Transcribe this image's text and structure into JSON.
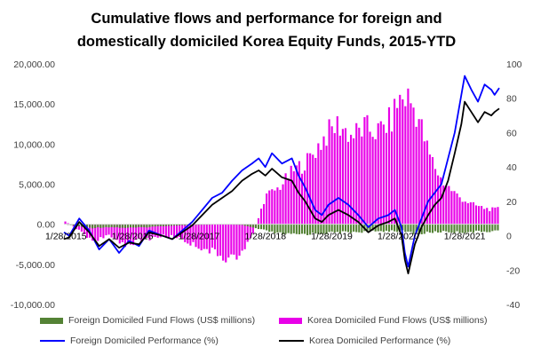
{
  "chart_data": {
    "type": "bar+line",
    "title_lines": [
      "Cumulative flows and performance for foreign and",
      "domestically domiciled Korea Equity Funds, 2015-YTD"
    ],
    "x_tick_labels": [
      "1/28/2015",
      "1/28/2016",
      "1/28/2017",
      "1/28/2018",
      "1/28/2019",
      "1/28/2020",
      "1/28/2021"
    ],
    "y_left": {
      "min": -10000,
      "max": 20000,
      "step": 5000,
      "tick_labels": [
        "-10,000.00",
        "-5,000.00",
        "0.00",
        "5,000.00",
        "10,000.00",
        "15,000.00",
        "20,000.00"
      ]
    },
    "y_right": {
      "min": -40,
      "max": 100,
      "step": 20,
      "tick_labels": [
        "-40",
        "-20",
        "0",
        "20",
        "40",
        "60",
        "80",
        "100"
      ]
    },
    "x_range": [
      2015.07,
      2021.62
    ],
    "series": [
      {
        "name": "Foreign Domiciled Fund  Flows (US$ millions)",
        "kind": "bar",
        "axis": "left",
        "color": "#548235",
        "points": [
          [
            2015.07,
            0
          ],
          [
            2015.25,
            -200
          ],
          [
            2015.5,
            -450
          ],
          [
            2015.75,
            -350
          ],
          [
            2016.0,
            -450
          ],
          [
            2016.25,
            -400
          ],
          [
            2016.5,
            -250
          ],
          [
            2016.75,
            -150
          ],
          [
            2017.0,
            -100
          ],
          [
            2017.25,
            -50
          ],
          [
            2017.5,
            0
          ],
          [
            2017.75,
            -100
          ],
          [
            2018.0,
            -600
          ],
          [
            2018.25,
            -1100
          ],
          [
            2018.5,
            -1300
          ],
          [
            2018.75,
            -1200
          ],
          [
            2019.0,
            -1100
          ],
          [
            2019.25,
            -1000
          ],
          [
            2019.5,
            -950
          ],
          [
            2019.75,
            -900
          ],
          [
            2020.0,
            -800
          ],
          [
            2020.2,
            -900
          ],
          [
            2020.4,
            -1200
          ],
          [
            2020.6,
            -1000
          ],
          [
            2020.8,
            -900
          ],
          [
            2021.0,
            -1000
          ],
          [
            2021.2,
            -950
          ],
          [
            2021.4,
            -900
          ],
          [
            2021.62,
            -800
          ]
        ]
      },
      {
        "name": "Korea Domiciled Fund  Flows (US$ millions)",
        "kind": "bar",
        "axis": "left",
        "color": "#e800e8",
        "points": [
          [
            2015.07,
            500
          ],
          [
            2015.3,
            -800
          ],
          [
            2015.5,
            -2000
          ],
          [
            2015.75,
            -1500
          ],
          [
            2016.0,
            -2500
          ],
          [
            2016.25,
            -2000
          ],
          [
            2016.5,
            -1500
          ],
          [
            2016.75,
            -1500
          ],
          [
            2017.0,
            -2500
          ],
          [
            2017.25,
            -3200
          ],
          [
            2017.5,
            -4200
          ],
          [
            2017.75,
            -3800
          ],
          [
            2017.95,
            -500
          ],
          [
            2018.1,
            3500
          ],
          [
            2018.3,
            4500
          ],
          [
            2018.5,
            6500
          ],
          [
            2018.75,
            8000
          ],
          [
            2019.0,
            11000
          ],
          [
            2019.2,
            12500
          ],
          [
            2019.4,
            11000
          ],
          [
            2019.6,
            12000
          ],
          [
            2019.8,
            11500
          ],
          [
            2020.0,
            13000
          ],
          [
            2020.1,
            15500
          ],
          [
            2020.25,
            15800
          ],
          [
            2020.4,
            13500
          ],
          [
            2020.55,
            9000
          ],
          [
            2020.75,
            5500
          ],
          [
            2021.0,
            3500
          ],
          [
            2021.2,
            2500
          ],
          [
            2021.4,
            2000
          ],
          [
            2021.55,
            1800
          ],
          [
            2021.62,
            2000
          ]
        ]
      },
      {
        "name": "Foreign Domiciled Performance (%)",
        "kind": "line",
        "axis": "right",
        "color": "#0000ff",
        "points": [
          [
            2015.07,
            2
          ],
          [
            2015.15,
            0
          ],
          [
            2015.3,
            10
          ],
          [
            2015.45,
            3
          ],
          [
            2015.6,
            -8
          ],
          [
            2015.75,
            -2
          ],
          [
            2015.9,
            -10
          ],
          [
            2016.05,
            -3
          ],
          [
            2016.2,
            -6
          ],
          [
            2016.35,
            3
          ],
          [
            2016.55,
            0
          ],
          [
            2016.7,
            -2
          ],
          [
            2016.85,
            3
          ],
          [
            2017.0,
            8
          ],
          [
            2017.15,
            15
          ],
          [
            2017.3,
            22
          ],
          [
            2017.45,
            25
          ],
          [
            2017.6,
            32
          ],
          [
            2017.75,
            38
          ],
          [
            2017.9,
            42
          ],
          [
            2018.0,
            45
          ],
          [
            2018.1,
            40
          ],
          [
            2018.2,
            48
          ],
          [
            2018.35,
            42
          ],
          [
            2018.5,
            45
          ],
          [
            2018.6,
            35
          ],
          [
            2018.7,
            28
          ],
          [
            2018.85,
            15
          ],
          [
            2018.95,
            12
          ],
          [
            2019.05,
            18
          ],
          [
            2019.2,
            22
          ],
          [
            2019.35,
            18
          ],
          [
            2019.5,
            12
          ],
          [
            2019.65,
            5
          ],
          [
            2019.8,
            10
          ],
          [
            2019.95,
            12
          ],
          [
            2020.05,
            15
          ],
          [
            2020.15,
            5
          ],
          [
            2020.2,
            -10
          ],
          [
            2020.25,
            -18
          ],
          [
            2020.35,
            0
          ],
          [
            2020.45,
            10
          ],
          [
            2020.55,
            20
          ],
          [
            2020.65,
            25
          ],
          [
            2020.75,
            30
          ],
          [
            2020.85,
            45
          ],
          [
            2020.95,
            60
          ],
          [
            2021.05,
            82
          ],
          [
            2021.1,
            93
          ],
          [
            2021.2,
            85
          ],
          [
            2021.3,
            78
          ],
          [
            2021.4,
            88
          ],
          [
            2021.5,
            85
          ],
          [
            2021.55,
            82
          ],
          [
            2021.62,
            86
          ]
        ]
      },
      {
        "name": "Korea  Domiciled Performance (%)",
        "kind": "line",
        "axis": "right",
        "color": "#000000",
        "points": [
          [
            2015.07,
            -2
          ],
          [
            2015.15,
            -1
          ],
          [
            2015.3,
            8
          ],
          [
            2015.45,
            2
          ],
          [
            2015.6,
            -6
          ],
          [
            2015.75,
            -2
          ],
          [
            2015.9,
            -7
          ],
          [
            2016.05,
            -4
          ],
          [
            2016.2,
            -5
          ],
          [
            2016.35,
            2
          ],
          [
            2016.55,
            0
          ],
          [
            2016.7,
            -2
          ],
          [
            2016.85,
            2
          ],
          [
            2017.0,
            6
          ],
          [
            2017.15,
            12
          ],
          [
            2017.3,
            18
          ],
          [
            2017.45,
            22
          ],
          [
            2017.6,
            26
          ],
          [
            2017.75,
            32
          ],
          [
            2017.9,
            36
          ],
          [
            2018.0,
            38
          ],
          [
            2018.1,
            35
          ],
          [
            2018.2,
            39
          ],
          [
            2018.35,
            34
          ],
          [
            2018.5,
            32
          ],
          [
            2018.6,
            25
          ],
          [
            2018.7,
            20
          ],
          [
            2018.85,
            10
          ],
          [
            2018.95,
            8
          ],
          [
            2019.05,
            12
          ],
          [
            2019.2,
            15
          ],
          [
            2019.35,
            12
          ],
          [
            2019.5,
            8
          ],
          [
            2019.65,
            2
          ],
          [
            2019.8,
            6
          ],
          [
            2019.95,
            8
          ],
          [
            2020.05,
            10
          ],
          [
            2020.15,
            0
          ],
          [
            2020.2,
            -14
          ],
          [
            2020.25,
            -22
          ],
          [
            2020.35,
            -5
          ],
          [
            2020.45,
            5
          ],
          [
            2020.55,
            12
          ],
          [
            2020.65,
            18
          ],
          [
            2020.75,
            22
          ],
          [
            2020.85,
            32
          ],
          [
            2020.95,
            48
          ],
          [
            2021.05,
            65
          ],
          [
            2021.1,
            78
          ],
          [
            2021.2,
            72
          ],
          [
            2021.3,
            66
          ],
          [
            2021.4,
            72
          ],
          [
            2021.5,
            70
          ],
          [
            2021.55,
            72
          ],
          [
            2021.62,
            74
          ]
        ]
      }
    ],
    "legend_position": "bottom",
    "grid": false
  }
}
